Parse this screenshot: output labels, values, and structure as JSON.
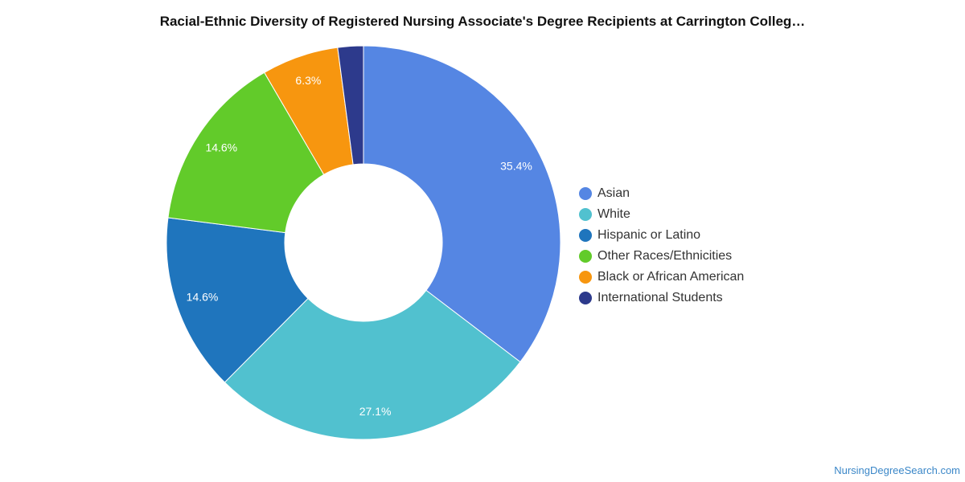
{
  "chart_data": {
    "type": "pie",
    "title": "Racial-Ethnic Diversity of Registered Nursing Associate's Degree Recipients at Carrington Colleg…",
    "donut": true,
    "legend_position": "right",
    "slices": [
      {
        "label": "Asian",
        "value": 35.4,
        "data_label": "35.4%",
        "color": "#5586e3"
      },
      {
        "label": "White",
        "value": 27.1,
        "data_label": "27.1%",
        "color": "#51c1cf"
      },
      {
        "label": "Hispanic or Latino",
        "value": 14.6,
        "data_label": "14.6%",
        "color": "#1f75bd"
      },
      {
        "label": "Other Races/Ethnicities",
        "value": 14.6,
        "data_label": "14.6%",
        "color": "#62cb2a"
      },
      {
        "label": "Black or African American",
        "value": 6.3,
        "data_label": "6.3%",
        "color": "#f7960f"
      },
      {
        "label": "International Students",
        "value": 2.1,
        "data_label": "",
        "color": "#2d3a8c"
      }
    ]
  },
  "footer": {
    "source": "NursingDegreeSearch.com"
  }
}
